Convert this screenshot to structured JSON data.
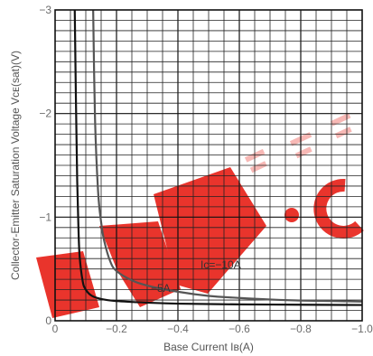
{
  "chart_data": {
    "type": "line",
    "title": "",
    "xlabel": "Base Current Iʙ(A)",
    "ylabel": "Collector-Emitter Saturation Voltage Vᴄᴇ(sat)(V)",
    "xlim": [
      0,
      -1.0
    ],
    "ylim": [
      0,
      -3
    ],
    "x_ticks": [
      "0",
      "−0.2",
      "−0.4",
      "−0.6",
      "−0.8",
      "−1.0"
    ],
    "y_ticks": [
      "0",
      "−1",
      "−2",
      "−3"
    ],
    "grid": true,
    "series": [
      {
        "name": "Ic=−10A",
        "label": "Ic=−10A",
        "color": "#555555",
        "x": [
          -0.124,
          -0.13,
          -0.14,
          -0.15,
          -0.16,
          -0.18,
          -0.2,
          -0.25,
          -0.3,
          -0.4,
          -0.5,
          -0.6,
          -0.7,
          -0.8,
          -0.9,
          -1.0
        ],
        "y": [
          -3.0,
          -1.95,
          -1.25,
          -0.95,
          -0.77,
          -0.57,
          -0.48,
          -0.39,
          -0.34,
          -0.28,
          -0.24,
          -0.22,
          -0.205,
          -0.195,
          -0.19,
          -0.185
        ]
      },
      {
        "name": "−5A",
        "label": "−5A",
        "color": "#111111",
        "x": [
          -0.064,
          -0.068,
          -0.072,
          -0.076,
          -0.08,
          -0.09,
          -0.1,
          -0.12,
          -0.15,
          -0.2,
          -0.3,
          -0.4,
          -0.6,
          -0.8,
          -1.0
        ],
        "y": [
          -3.0,
          -2.1,
          -1.35,
          -0.9,
          -0.62,
          -0.38,
          -0.3,
          -0.24,
          -0.21,
          -0.19,
          -0.175,
          -0.165,
          -0.158,
          -0.155,
          -0.152
        ]
      }
    ]
  },
  "watermark": {
    "text": "DW .co",
    "color": "#e0201a"
  }
}
